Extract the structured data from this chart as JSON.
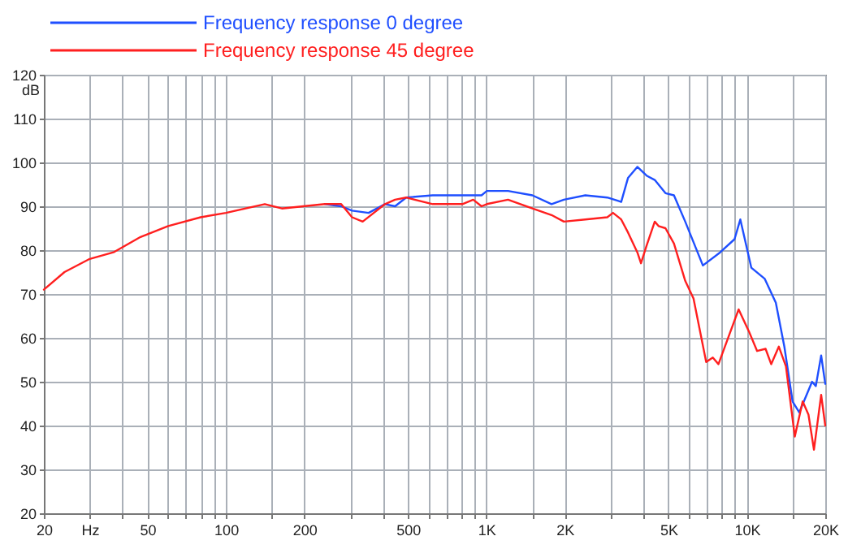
{
  "chart_data": {
    "type": "line",
    "ylabel": "dB",
    "log": "x",
    "grid": true,
    "legend": "top left",
    "line_style": "solid",
    "marker": "none",
    "xlim": [
      20,
      20000
    ],
    "ylim": [
      20,
      120
    ],
    "xticks": [
      20,
      {
        "value": 30,
        "label": "Hz"
      },
      {
        "value": 40,
        "label": null
      },
      50,
      {
        "value": 60,
        "label": null
      },
      {
        "value": 70,
        "label": null
      },
      {
        "value": 80,
        "label": null
      },
      {
        "value": 90,
        "label": null
      },
      100,
      {
        "value": 150,
        "label": null
      },
      200,
      {
        "value": 300,
        "label": null
      },
      {
        "value": 400,
        "label": null
      },
      500,
      {
        "value": 600,
        "label": null
      },
      {
        "value": 700,
        "label": null
      },
      {
        "value": 800,
        "label": null
      },
      {
        "value": 900,
        "label": null
      },
      {
        "value": 1000,
        "label": "1K"
      },
      {
        "value": 1500,
        "label": null
      },
      {
        "value": 2000,
        "label": "2K"
      },
      {
        "value": 3000,
        "label": null
      },
      {
        "value": 4000,
        "label": null
      },
      {
        "value": 5000,
        "label": "5K"
      },
      {
        "value": 6000,
        "label": null
      },
      {
        "value": 7000,
        "label": null
      },
      {
        "value": 8000,
        "label": null
      },
      {
        "value": 9000,
        "label": null
      },
      {
        "value": 10000,
        "label": "10K"
      },
      {
        "value": 15000,
        "label": null
      },
      {
        "value": 20000,
        "label": "20K"
      }
    ],
    "yticks": [
      20,
      30,
      40,
      50,
      60,
      70,
      80,
      90,
      100,
      110,
      120
    ],
    "series": [
      {
        "name": "Frequency response 0 degree",
        "color": "#1f4fff",
        "x": [
          240,
          277,
          305,
          353,
          408,
          446,
          492,
          622,
          809,
          958,
          1004,
          1211,
          1502,
          1779,
          1984,
          2397,
          2912,
          3293,
          3499,
          3798,
          4120,
          4430,
          4870,
          5250,
          5800,
          6780,
          7900,
          8970,
          9440,
          10400,
          11700,
          12920,
          13930,
          14980,
          15900,
          17800,
          18400,
          19290,
          20000
        ],
        "values": [
          90.5,
          90,
          89,
          88.5,
          90.5,
          90,
          92,
          92.5,
          92.5,
          92.5,
          93.5,
          93.5,
          92.5,
          90.5,
          91.5,
          92.5,
          92,
          91,
          96.5,
          99,
          97,
          96,
          93,
          92.5,
          86.5,
          76.5,
          79.5,
          82.5,
          87,
          76,
          73.5,
          68,
          58,
          45.5,
          43,
          50,
          49,
          56,
          49.5
        ]
      },
      {
        "name": "Frequency response 45 degree",
        "color": "#ff1f1f",
        "x": [
          20,
          24,
          30,
          37,
          47,
          60,
          80,
          100,
          141,
          164,
          198,
          240,
          277,
          305,
          335,
          408,
          446,
          492,
          622,
          809,
          890,
          958,
          1004,
          1211,
          1502,
          1779,
          1984,
          2397,
          2912,
          3063,
          3293,
          3499,
          3798,
          3922,
          4120,
          4430,
          4580,
          4870,
          5250,
          5800,
          6240,
          6980,
          7400,
          7780,
          9300,
          10180,
          10950,
          11800,
          12400,
          13270,
          14130,
          15280,
          16380,
          17240,
          18100,
          19290,
          20000
        ],
        "values": [
          71,
          75,
          78,
          79.5,
          83,
          85.5,
          87.5,
          88.5,
          90.5,
          89.5,
          90,
          90.5,
          90.5,
          87.5,
          86.5,
          90.5,
          91.5,
          92,
          90.5,
          90.5,
          91.5,
          90,
          90.5,
          91.5,
          89.5,
          88,
          86.5,
          87,
          87.5,
          88.5,
          87,
          84,
          79.5,
          77,
          81,
          86.5,
          85.5,
          85,
          81.5,
          73,
          69,
          54.5,
          55.5,
          54,
          66.5,
          61.5,
          57,
          57.5,
          54,
          58,
          53.5,
          37.5,
          45.5,
          42.5,
          34.5,
          47,
          40
        ]
      }
    ]
  }
}
